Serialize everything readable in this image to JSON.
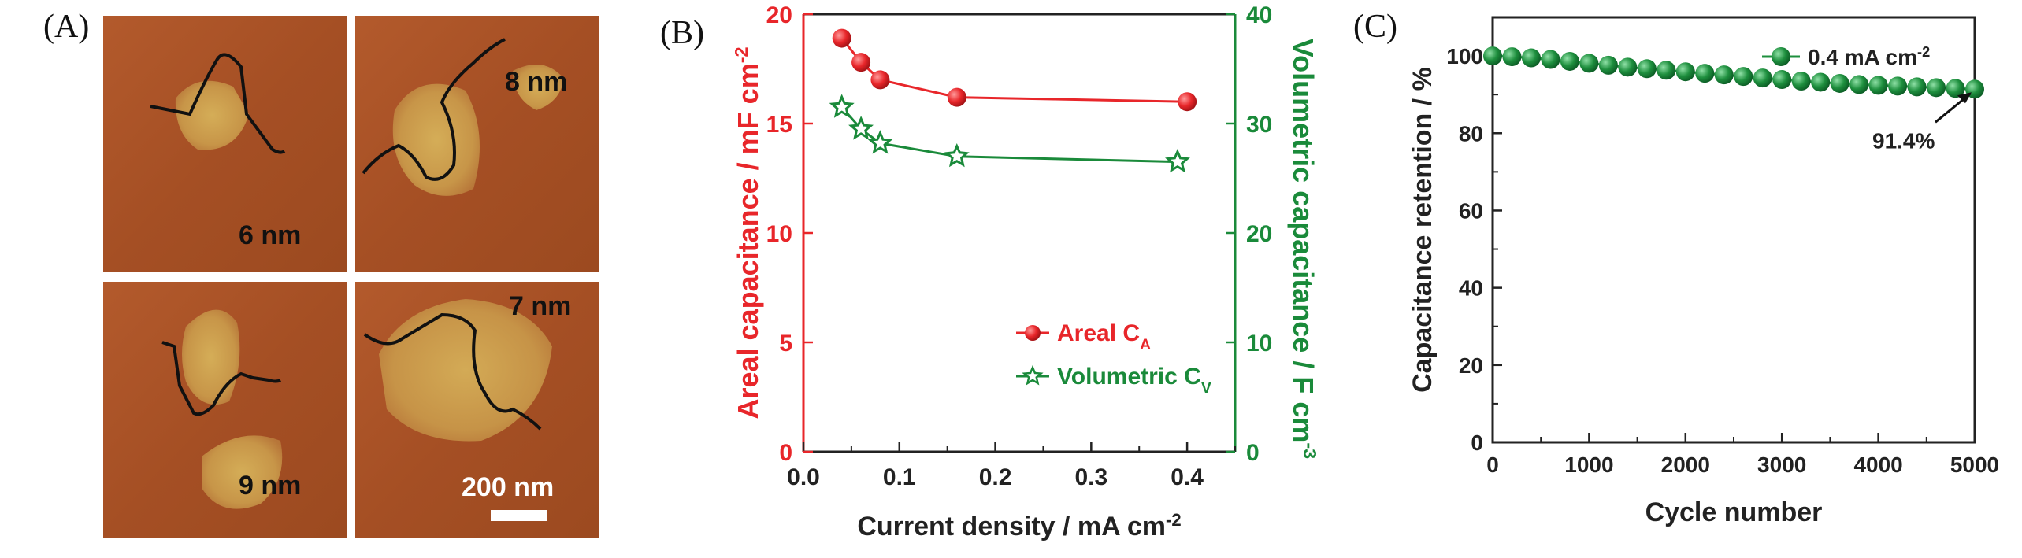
{
  "panels": {
    "a": {
      "label": "(A)"
    },
    "b": {
      "label": "(B)"
    },
    "c": {
      "label": "(C)"
    }
  },
  "afm": {
    "images": [
      {
        "thickness": "6 nm"
      },
      {
        "thickness": "8 nm"
      },
      {
        "thickness": "9 nm"
      },
      {
        "thickness": "7 nm"
      }
    ],
    "scale_bar": "200 nm"
  },
  "colors": {
    "areal": "#e8262a",
    "volumetric": "#1a8a3a",
    "retention": "#1e8f3e",
    "axis": "#222222"
  },
  "chart_data": [
    {
      "type": "line",
      "panel": "B",
      "xlabel": "Current density / mA cm",
      "xlabel_sup": "-2",
      "ylabel": "Areal capacitance / mF cm",
      "ylabel_sup": "-2",
      "y2label": "Volumetric capacitance / F cm",
      "y2label_sup": "-3",
      "xlim": [
        0.0,
        0.45
      ],
      "xticks": [
        0.0,
        0.1,
        0.2,
        0.3,
        0.4
      ],
      "xtick_labels": [
        "0.0",
        "0.1",
        "0.2",
        "0.3",
        "0.4"
      ],
      "ylim": [
        0,
        20
      ],
      "yticks": [
        0,
        5,
        10,
        15,
        20
      ],
      "ytick_labels": [
        "0",
        "5",
        "10",
        "15",
        "20"
      ],
      "y2lim": [
        0,
        40
      ],
      "y2ticks": [
        0,
        10,
        20,
        30,
        40
      ],
      "y2tick_labels": [
        "0",
        "10",
        "20",
        "30",
        "40"
      ],
      "series": [
        {
          "name": "Areal C",
          "sub": "A",
          "axis": "left",
          "marker": "circle",
          "x": [
            0.04,
            0.06,
            0.08,
            0.16,
            0.4
          ],
          "y": [
            18.9,
            17.8,
            17.0,
            16.2,
            16.0
          ]
        },
        {
          "name": "Volumetric C",
          "sub": "V",
          "axis": "right",
          "marker": "star",
          "x": [
            0.04,
            0.06,
            0.08,
            0.16,
            0.39
          ],
          "y": [
            31.5,
            29.5,
            28.2,
            27.0,
            26.5
          ]
        }
      ]
    },
    {
      "type": "line",
      "panel": "C",
      "xlabel": "Cycle number",
      "ylabel": "Capacitance retention / %",
      "xlim": [
        0,
        5000
      ],
      "xticks": [
        0,
        1000,
        2000,
        3000,
        4000,
        5000
      ],
      "xtick_labels": [
        "0",
        "1000",
        "2000",
        "3000",
        "4000",
        "5000"
      ],
      "ylim": [
        0,
        110
      ],
      "yticks": [
        0,
        20,
        40,
        60,
        80,
        100
      ],
      "ytick_labels": [
        "0",
        "20",
        "40",
        "60",
        "80",
        "100"
      ],
      "legend": {
        "label": "0.4 mA cm",
        "sup": "-2"
      },
      "annotation": "91.4%",
      "series": [
        {
          "name": "0.4 mA cm-2",
          "marker": "circle",
          "x": [
            0,
            200,
            400,
            600,
            800,
            1000,
            1200,
            1400,
            1600,
            1800,
            2000,
            2200,
            2400,
            2600,
            2800,
            3000,
            3200,
            3400,
            3600,
            3800,
            4000,
            4200,
            4400,
            4600,
            4800,
            5000
          ],
          "y": [
            100.0,
            99.8,
            99.5,
            99.1,
            98.6,
            98.1,
            97.6,
            97.1,
            96.7,
            96.3,
            95.9,
            95.5,
            95.1,
            94.7,
            94.3,
            93.9,
            93.5,
            93.2,
            92.9,
            92.6,
            92.4,
            92.2,
            92.0,
            91.8,
            91.6,
            91.4
          ]
        }
      ]
    }
  ]
}
